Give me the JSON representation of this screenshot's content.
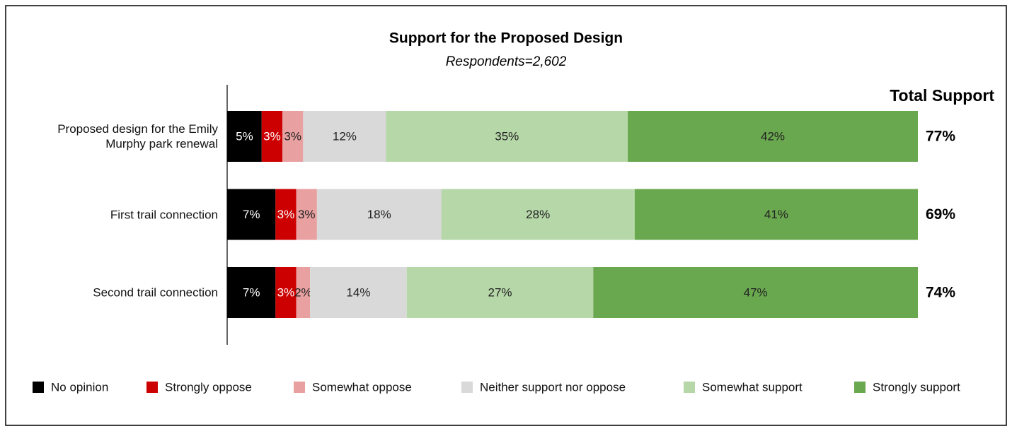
{
  "chart_data": {
    "type": "stacked_bar_horizontal",
    "title": "Support for the Proposed Design",
    "subtitle": "Respondents=2,602",
    "categories": [
      "Proposed design for the Emily Murphy park renewal",
      "First trail connection",
      "Second trail connection"
    ],
    "xlim": [
      0,
      100
    ],
    "series": [
      {
        "name": "No opinion",
        "color": "#000000",
        "values": [
          5,
          7,
          7
        ],
        "value_labels": [
          "5%",
          "7%",
          "7%"
        ]
      },
      {
        "name": "Strongly oppose",
        "color": "#cc0000",
        "values": [
          3,
          3,
          3
        ],
        "value_labels": [
          "3%",
          "3%",
          "3%"
        ]
      },
      {
        "name": "Somewhat oppose",
        "color": "#e8a0a0",
        "values": [
          3,
          3,
          2
        ],
        "value_labels": [
          "3%",
          "3%",
          "2%"
        ]
      },
      {
        "name": "Neither support nor oppose",
        "color": "#d9d9d9",
        "values": [
          12,
          18,
          14
        ],
        "value_labels": [
          "12%",
          "18%",
          "14%"
        ]
      },
      {
        "name": "Somewhat support",
        "color": "#b6d7a8",
        "values": [
          35,
          28,
          27
        ],
        "value_labels": [
          "35%",
          "28%",
          "27%"
        ]
      },
      {
        "name": "Strongly support",
        "color": "#6aa84f",
        "values": [
          42,
          41,
          47
        ],
        "value_labels": [
          "42%",
          "41%",
          "47%"
        ]
      }
    ],
    "total_support": {
      "title": "Total Support",
      "values": [
        77,
        69,
        74
      ],
      "value_labels": [
        "77%",
        "69%",
        "74%"
      ]
    }
  }
}
